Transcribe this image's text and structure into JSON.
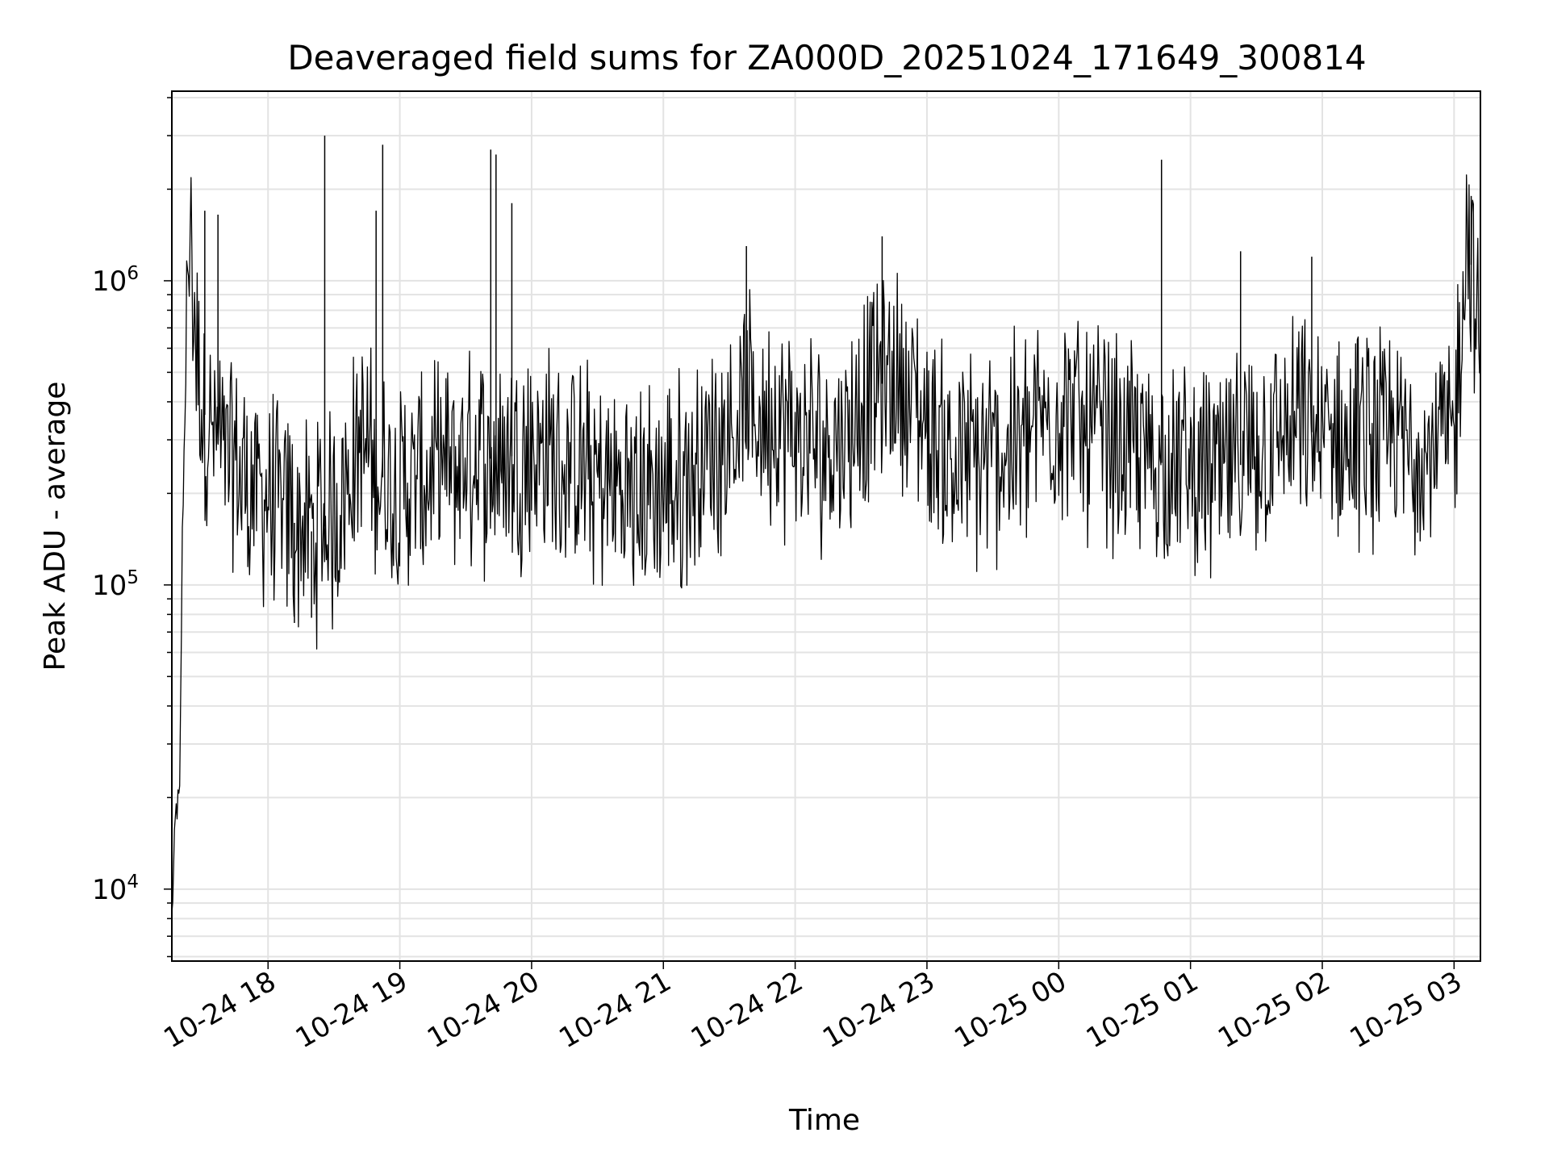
{
  "chart_data": {
    "type": "line",
    "title": "Deaveraged field sums for ZA000D_20251024_171649_300814",
    "xlabel": "Time",
    "ylabel": "Peak ADU - average",
    "y_scale": "log",
    "ylim": [
      5800,
      4200000
    ],
    "xlim_hours": [
      17.27,
      27.2
    ],
    "x_ticks": [
      {
        "hour": 18,
        "label": "10-24 18"
      },
      {
        "hour": 19,
        "label": "10-24 19"
      },
      {
        "hour": 20,
        "label": "10-24 20"
      },
      {
        "hour": 21,
        "label": "10-24 21"
      },
      {
        "hour": 22,
        "label": "10-24 22"
      },
      {
        "hour": 23,
        "label": "10-24 23"
      },
      {
        "hour": 24,
        "label": "10-25 00"
      },
      {
        "hour": 25,
        "label": "10-25 01"
      },
      {
        "hour": 26,
        "label": "10-25 02"
      },
      {
        "hour": 27,
        "label": "10-25 03"
      }
    ],
    "y_ticks": [
      {
        "value": 10000,
        "base": "10",
        "exp": "4"
      },
      {
        "value": 100000,
        "base": "10",
        "exp": "5"
      },
      {
        "value": 1000000,
        "base": "10",
        "exp": "6"
      }
    ],
    "grid": true,
    "series_color": "#000000",
    "series": [
      {
        "name": "field sums",
        "x_hours": [
          17.27,
          17.3,
          17.33,
          17.35,
          17.38,
          17.41,
          17.43,
          17.45,
          17.5,
          17.6,
          17.7,
          17.8,
          17.9,
          18.0,
          18.1,
          18.2,
          18.3,
          18.4,
          18.5,
          18.6,
          18.7,
          18.8,
          18.9,
          19.0,
          19.2,
          19.4,
          19.6,
          19.8,
          20.0,
          20.2,
          20.4,
          20.6,
          20.8,
          21.0,
          21.2,
          21.4,
          21.6,
          21.8,
          22.0,
          22.2,
          22.4,
          22.6,
          22.8,
          23.0,
          23.2,
          23.4,
          23.6,
          23.8,
          24.0,
          24.2,
          24.4,
          24.6,
          24.8,
          25.0,
          25.2,
          25.4,
          25.6,
          25.8,
          26.0,
          26.2,
          26.4,
          26.6,
          26.8,
          27.0,
          27.1,
          27.2
        ],
        "center_values": [
          8000,
          18000,
          20000,
          150000,
          600000,
          1500000,
          1000000,
          600000,
          380000,
          300000,
          260000,
          230000,
          210000,
          190000,
          170000,
          160000,
          150000,
          150000,
          170000,
          230000,
          300000,
          240000,
          220000,
          210000,
          220000,
          240000,
          260000,
          260000,
          280000,
          260000,
          230000,
          210000,
          200000,
          200000,
          230000,
          290000,
          380000,
          350000,
          300000,
          280000,
          330000,
          450000,
          480000,
          330000,
          260000,
          250000,
          280000,
          320000,
          380000,
          330000,
          300000,
          270000,
          250000,
          240000,
          230000,
          250000,
          290000,
          330000,
          310000,
          290000,
          300000,
          290000,
          290000,
          300000,
          1600000,
          500000
        ],
        "spikes": [
          {
            "hour": 18.43,
            "value": 3000000
          },
          {
            "hour": 18.87,
            "value": 2800000
          },
          {
            "hour": 19.69,
            "value": 2700000
          },
          {
            "hour": 19.73,
            "value": 2600000
          },
          {
            "hour": 19.85,
            "value": 1800000
          },
          {
            "hour": 17.52,
            "value": 1700000
          },
          {
            "hour": 17.62,
            "value": 1650000
          },
          {
            "hour": 18.82,
            "value": 1700000
          },
          {
            "hour": 22.66,
            "value": 1400000
          },
          {
            "hour": 21.63,
            "value": 1300000
          },
          {
            "hour": 24.78,
            "value": 2500000
          },
          {
            "hour": 25.38,
            "value": 1250000
          },
          {
            "hour": 25.92,
            "value": 1200000
          },
          {
            "hour": 27.13,
            "value": 1900000
          },
          {
            "hour": 18.2,
            "value": 75000
          },
          {
            "hour": 18.33,
            "value": 78000
          }
        ]
      }
    ]
  }
}
